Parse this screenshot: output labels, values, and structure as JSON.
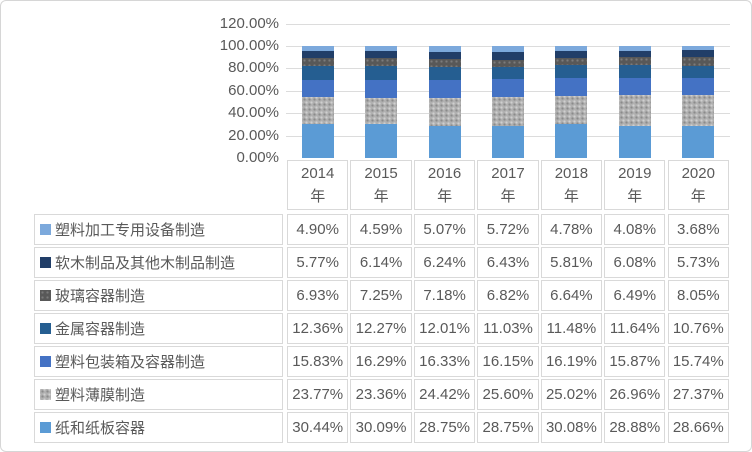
{
  "frame": {
    "background": "#FFFFFF",
    "border_color": "#D6D6D6",
    "text_color": "#595959",
    "grid_color": "#DCDCDC"
  },
  "chart_data": {
    "type": "bar",
    "stacked": true,
    "percent_stacked": true,
    "title": "",
    "x_categories": [
      "2014",
      "2015",
      "2016",
      "2017",
      "2018",
      "2019",
      "2020"
    ],
    "x_category_suffix": "年",
    "y_axis": {
      "min": 0,
      "max": 120,
      "step": 20,
      "ticks": [
        "0.00%",
        "20.00%",
        "40.00%",
        "60.00%",
        "80.00%",
        "100.00%",
        "120.00%"
      ]
    },
    "grid": true,
    "legend_position": "table-rows-left",
    "segment_order_note": "series listed top-of-bar to bottom-of-bar, same order as table rows",
    "value_format": "percent_2dp",
    "series": [
      {
        "name": "塑料加工专用设备制造",
        "color": "#7CA9DC",
        "pattern": null,
        "values": [
          4.9,
          4.59,
          5.07,
          5.72,
          4.78,
          4.08,
          3.68
        ]
      },
      {
        "name": "软木制品及其他木制品制造",
        "color": "#213E68",
        "pattern": null,
        "values": [
          5.77,
          6.14,
          6.24,
          6.43,
          5.81,
          6.08,
          5.73
        ]
      },
      {
        "name": "玻璃容器制造",
        "color": "#595959",
        "pattern": "dots-dark",
        "values": [
          6.93,
          7.25,
          7.18,
          6.82,
          6.64,
          6.49,
          8.05
        ]
      },
      {
        "name": "金属容器制造",
        "color": "#255E91",
        "pattern": null,
        "values": [
          12.36,
          12.27,
          12.01,
          11.03,
          11.48,
          11.64,
          10.76
        ]
      },
      {
        "name": "塑料包装箱及容器制造",
        "color": "#4472C4",
        "pattern": null,
        "values": [
          15.83,
          16.29,
          16.33,
          16.15,
          16.19,
          15.87,
          15.74
        ]
      },
      {
        "name": "塑料薄膜制造",
        "color": "#A6A6A6",
        "pattern": "dots-light",
        "values": [
          23.77,
          23.36,
          24.42,
          25.6,
          25.02,
          26.96,
          27.37
        ]
      },
      {
        "name": "纸和纸板容器",
        "color": "#5B9BD5",
        "pattern": null,
        "values": [
          30.44,
          30.09,
          28.75,
          28.75,
          30.08,
          28.88,
          28.66
        ]
      }
    ]
  }
}
